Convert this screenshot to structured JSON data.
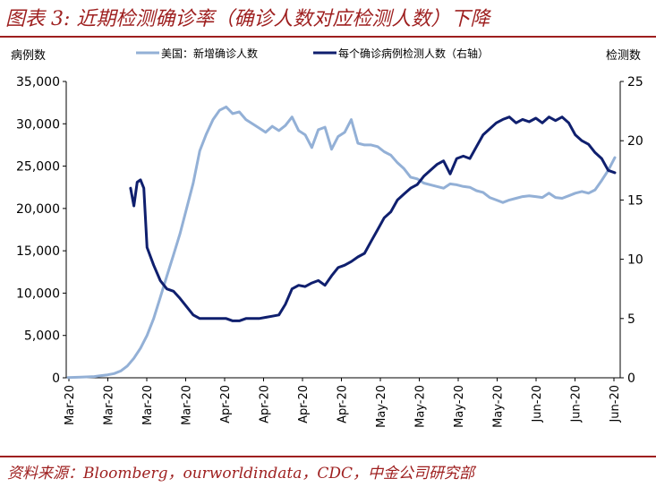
{
  "figure_title": "图表 3: 近期检测确诊率（确诊人数对应检测人数）下降",
  "source": "资料来源：Bloomberg，ourworldindata，CDC，中金公司研究部",
  "colors": {
    "title": "#9e1f1f",
    "us_cases": "#93b0d6",
    "cases_per_test": "#0f1f6e",
    "axis": "#000000"
  },
  "chart_data": {
    "type": "line",
    "ylabel_left": "病例数",
    "ylabel_right": "检测数",
    "ylim_left": [
      0,
      35000
    ],
    "ylim_right": [
      0,
      25
    ],
    "yticks_left": [
      "0",
      "5,000",
      "10,000",
      "15,000",
      "20,000",
      "25,000",
      "30,000",
      "35,000"
    ],
    "yticks_right": [
      "0",
      "5",
      "10",
      "15",
      "20",
      "25"
    ],
    "xticks": [
      "Mar-20",
      "Mar-20",
      "Mar-20",
      "Mar-20",
      "Apr-20",
      "Apr-20",
      "Apr-20",
      "Apr-20",
      "May-20",
      "May-20",
      "May-20",
      "May-20",
      "Jun-20",
      "Jun-20",
      "Jun-20"
    ],
    "grid": false,
    "legend_position": "top",
    "series": [
      {
        "name": "美国：新增确诊人数",
        "axis": "left",
        "x": [
          0,
          4,
          8,
          10,
          12,
          14,
          16,
          18,
          20,
          22,
          24,
          26,
          28,
          30,
          32,
          34,
          36,
          38,
          40,
          42,
          44,
          46,
          48,
          50,
          52,
          54,
          56,
          58,
          60,
          62,
          64,
          66,
          68,
          70,
          72,
          74,
          76,
          78,
          80,
          82,
          84,
          86,
          88,
          90,
          92,
          94,
          96,
          98,
          100,
          102,
          104,
          106,
          108,
          110,
          112,
          114,
          116,
          118,
          120,
          122,
          124,
          126,
          128,
          130,
          132,
          134,
          136,
          138,
          140,
          142,
          144,
          146,
          148,
          150,
          152,
          154,
          156,
          158,
          160,
          162,
          164,
          166
        ],
        "values": [
          30,
          80,
          150,
          250,
          350,
          500,
          800,
          1400,
          2300,
          3500,
          5000,
          7000,
          9500,
          12000,
          14500,
          17000,
          20000,
          23000,
          26800,
          28800,
          30500,
          31600,
          32000,
          31200,
          31400,
          30500,
          30000,
          29500,
          29000,
          29700,
          29200,
          29800,
          30800,
          29200,
          28700,
          27200,
          29300,
          29600,
          27000,
          28500,
          29000,
          30500,
          27700,
          27500,
          27500,
          27300,
          26700,
          26300,
          25400,
          24700,
          23700,
          23500,
          23000,
          22800,
          22600,
          22400,
          22900,
          22800,
          22600,
          22500,
          22100,
          21900,
          21300,
          21000,
          20700,
          21000,
          21200,
          21400,
          21500,
          21400,
          21300,
          21800,
          21300,
          21200,
          21500,
          21800,
          22000,
          21800,
          22200,
          23300,
          24500,
          26000
        ]
      },
      {
        "name": "每个确诊病例检测人数（右轴）",
        "axis": "right",
        "x": [
          19,
          20,
          21,
          22,
          23,
          24,
          26,
          28,
          30,
          32,
          34,
          36,
          38,
          40,
          42,
          44,
          46,
          48,
          50,
          52,
          54,
          56,
          58,
          60,
          62,
          64,
          66,
          68,
          70,
          72,
          74,
          76,
          78,
          80,
          82,
          84,
          86,
          88,
          90,
          92,
          94,
          96,
          98,
          100,
          102,
          104,
          106,
          108,
          110,
          112,
          114,
          116,
          118,
          120,
          122,
          124,
          126,
          128,
          130,
          132,
          134,
          136,
          138,
          140,
          142,
          144,
          146,
          148,
          150,
          152,
          154,
          156,
          158,
          160,
          162,
          164,
          166
        ],
        "values": [
          16.0,
          14.5,
          16.5,
          16.7,
          16.0,
          11.0,
          9.5,
          8.2,
          7.5,
          7.3,
          6.7,
          6.0,
          5.3,
          5.0,
          5.0,
          5.0,
          5.0,
          5.0,
          4.8,
          4.8,
          5.0,
          5.0,
          5.0,
          5.1,
          5.2,
          5.3,
          6.2,
          7.5,
          7.8,
          7.7,
          8.0,
          8.2,
          7.8,
          8.6,
          9.3,
          9.5,
          9.8,
          10.2,
          10.5,
          11.5,
          12.5,
          13.5,
          14.0,
          15.0,
          15.5,
          16.0,
          16.3,
          17.0,
          17.5,
          18.0,
          18.3,
          17.2,
          18.5,
          18.7,
          18.5,
          19.5,
          20.5,
          21.0,
          21.5,
          21.8,
          22.0,
          21.5,
          21.8,
          21.6,
          21.9,
          21.5,
          22.0,
          21.7,
          22.0,
          21.5,
          20.5,
          20.0,
          19.7,
          19.0,
          18.5,
          17.5,
          17.3
        ]
      }
    ]
  }
}
